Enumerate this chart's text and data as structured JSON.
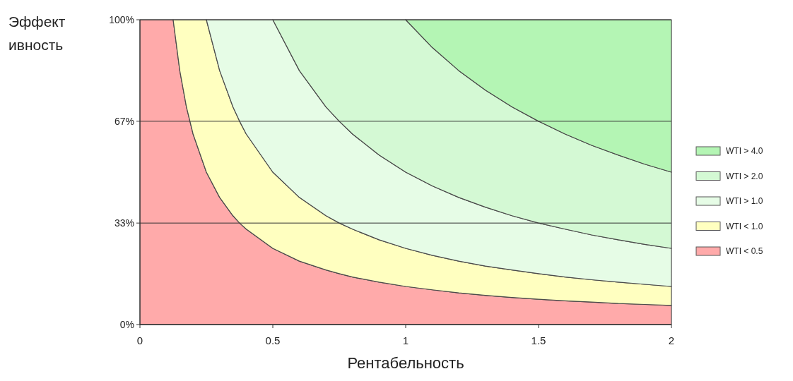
{
  "chart_data": {
    "type": "area",
    "stacked": true,
    "xlabel": "Рентабельность",
    "ylabel": "Эффективность",
    "xlim": [
      0,
      2
    ],
    "xticks": [
      0,
      {
        "value": 0.5,
        "label": "0.5"
      },
      1,
      {
        "value": 1.5,
        "label": "1.5"
      },
      2
    ],
    "ylim": [
      0,
      100
    ],
    "yticks": [
      {
        "value": 0,
        "label": "0%"
      },
      {
        "value": 33.3,
        "label": "33%"
      },
      {
        "value": 66.7,
        "label": "67%"
      },
      {
        "value": 100,
        "label": "100%"
      }
    ],
    "grid": "y",
    "legend": "right",
    "marker": "none",
    "line_style": "solid",
    "x": [
      0,
      0.125,
      0.15,
      0.175,
      0.2,
      0.25,
      0.3,
      0.35,
      0.375,
      0.4,
      0.5,
      0.6,
      0.7,
      0.75,
      0.8,
      0.9,
      1,
      1.1,
      1.2,
      1.3,
      1.4,
      1.5,
      1.6,
      1.7,
      1.8,
      1.9,
      2
    ],
    "series": [
      {
        "name": "WTI < 0.5",
        "color": "#ffaaaa",
        "values": [
          100,
          100,
          83.3,
          71.4,
          62.5,
          50,
          41.7,
          35.7,
          33.3,
          31.3,
          25,
          20.8,
          17.9,
          16.7,
          15.6,
          13.9,
          12.5,
          11.4,
          10.4,
          9.6,
          8.9,
          8.3,
          7.8,
          7.4,
          6.9,
          6.6,
          6.3
        ]
      },
      {
        "name": "WTI < 1.0",
        "color": "#ffffc0",
        "values": [
          null,
          0,
          16.7,
          28.6,
          37.5,
          50,
          41.6,
          35.7,
          33.4,
          31.2,
          25,
          20.9,
          17.8,
          16.6,
          15.7,
          13.9,
          12.5,
          11.3,
          10.4,
          9.6,
          9,
          8.4,
          7.8,
          7.3,
          7,
          6.6,
          6.2
        ]
      },
      {
        "name": "WTI > 1.0",
        "color": "#e6fce6",
        "values": [
          null,
          null,
          null,
          null,
          null,
          0,
          16.7,
          28.6,
          33.3,
          37.5,
          50,
          41.6,
          35.7,
          33.4,
          31.2,
          27.8,
          25,
          22.8,
          20.9,
          19.3,
          17.8,
          16.6,
          15.7,
          14.7,
          13.9,
          13.1,
          12.5
        ]
      },
      {
        "name": "WTI > 2.0",
        "color": "#d4f9d4",
        "values": [
          null,
          null,
          null,
          null,
          null,
          null,
          null,
          null,
          null,
          null,
          0,
          16.7,
          28.6,
          33.3,
          37.5,
          44.4,
          50,
          45.4,
          41.6,
          38.4,
          35.7,
          33.4,
          31.2,
          29.4,
          27.8,
          26.3,
          25
        ]
      },
      {
        "name": "WTI > 4.0",
        "color": "#b4f5b4",
        "values": [
          null,
          null,
          null,
          null,
          null,
          null,
          null,
          null,
          null,
          null,
          null,
          null,
          null,
          null,
          null,
          null,
          0,
          9.1,
          16.7,
          23.1,
          28.6,
          33.3,
          37.5,
          41.2,
          44.4,
          47.4,
          50
        ]
      }
    ]
  }
}
